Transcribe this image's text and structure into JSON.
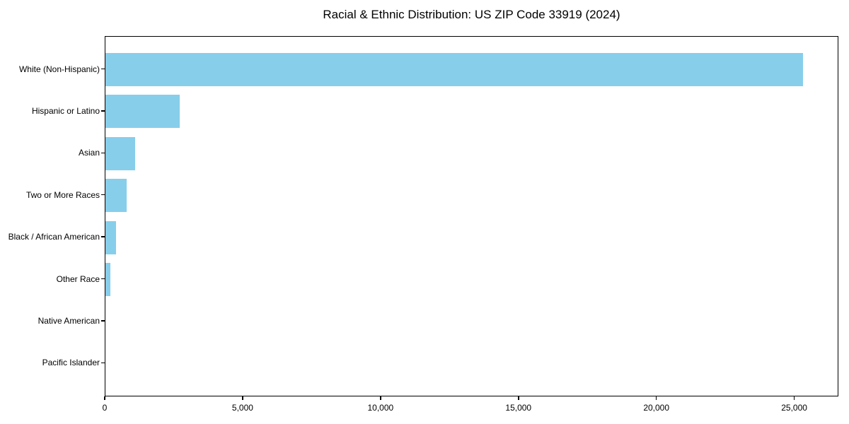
{
  "chart_data": {
    "type": "bar",
    "orientation": "horizontal",
    "title": "Racial & Ethnic Distribution: US ZIP Code 33919 (2024)",
    "xlabel": "",
    "ylabel": "",
    "categories": [
      "White (Non-Hispanic)",
      "Hispanic or Latino",
      "Asian",
      "Two or More Races",
      "Black / African American",
      "Other Race",
      "Native American",
      "Pacific Islander"
    ],
    "values": [
      25300,
      2700,
      1070,
      770,
      380,
      180,
      0,
      0
    ],
    "xlim": [
      0,
      26600
    ],
    "xticks": [
      0,
      5000,
      10000,
      15000,
      20000,
      25000
    ],
    "xtick_labels": [
      "0",
      "5,000",
      "10,000",
      "15,000",
      "20,000",
      "25,000"
    ],
    "bar_color": "#87CEEB",
    "axis_color": "#000000",
    "text_color": "#000000",
    "background_color": "#ffffff",
    "grid": false,
    "legend": false
  }
}
